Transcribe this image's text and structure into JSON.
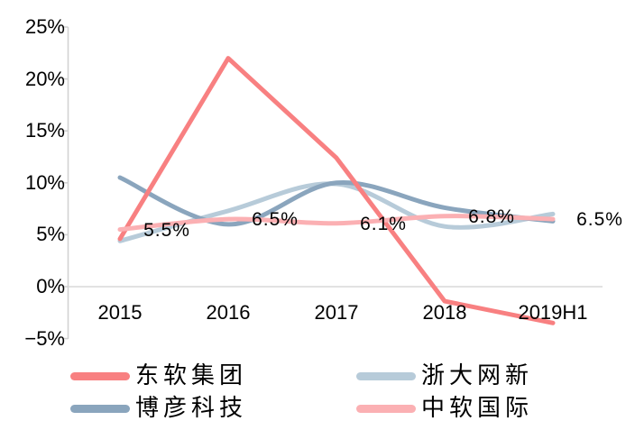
{
  "chart_data": {
    "type": "line",
    "title": "",
    "categories": [
      "2015",
      "2016",
      "2017",
      "2018",
      "2019H1"
    ],
    "series": [
      {
        "name": "东软集团",
        "color": "#F88081",
        "smooth": false,
        "values": [
          4.6,
          22.0,
          12.4,
          -1.4,
          -3.5
        ]
      },
      {
        "name": "博彦科技",
        "color": "#8AA5BD",
        "smooth": true,
        "values": [
          10.5,
          6.0,
          10.0,
          7.6,
          6.3
        ]
      },
      {
        "name": "浙大网新",
        "color": "#B7CBD9",
        "smooth": true,
        "values": [
          4.4,
          7.3,
          9.9,
          5.8,
          7.0
        ]
      },
      {
        "name": "中软国际",
        "color": "#FBB0B3",
        "smooth": true,
        "values": [
          5.5,
          6.5,
          6.1,
          6.8,
          6.5
        ]
      }
    ],
    "data_labels": {
      "series_name": "中软国际",
      "labels": [
        "5.5%",
        "6.5%",
        "6.1%",
        "6.8%",
        "6.5%"
      ]
    },
    "y_ticks": [
      {
        "label": "25%",
        "value": 25
      },
      {
        "label": "20%",
        "value": 20
      },
      {
        "label": "15%",
        "value": 15
      },
      {
        "label": "10%",
        "value": 10
      },
      {
        "label": "5%",
        "value": 5
      },
      {
        "label": "0%",
        "value": 0
      },
      {
        "label": "−5%",
        "value": -5
      }
    ],
    "ylim": [
      -5,
      25
    ],
    "grid": {
      "zero_line": true,
      "other_gridlines": false
    },
    "legend_position": "bottom-two-columns",
    "legend": [
      "东软集团",
      "博彦科技",
      "浙大网新",
      "中软国际"
    ]
  },
  "colors": {
    "axis": "#D2D2D2",
    "zero_line": "#D9D9D9",
    "text": "#000000",
    "background": "#FFFFFF"
  }
}
